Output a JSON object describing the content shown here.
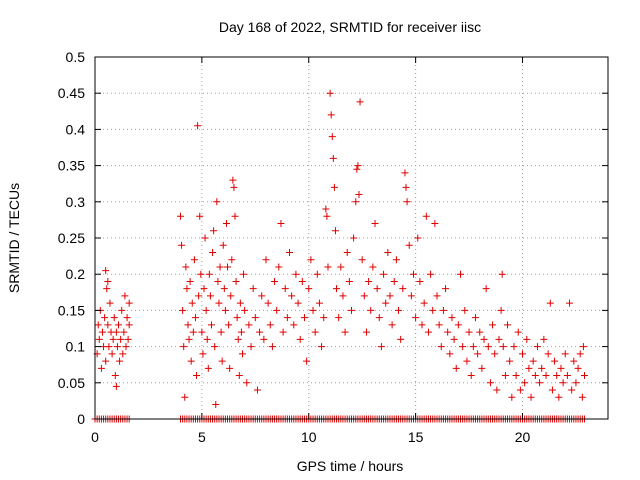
{
  "chart_data": {
    "type": "scatter",
    "title": "Day 168 of 2022, SRMTID for receiver iisc",
    "xlabel": "GPS time / hours",
    "ylabel": "SRMTID / TECUs",
    "xlim": [
      0,
      24
    ],
    "ylim": [
      0,
      0.5
    ],
    "x_ticks": [
      0,
      5,
      10,
      15,
      20
    ],
    "x_tick_labels": [
      "0",
      "5",
      "10",
      "15",
      "20"
    ],
    "y_ticks": [
      0,
      0.05,
      0.1,
      0.15,
      0.2,
      0.25,
      0.3,
      0.35,
      0.4,
      0.45,
      0.5
    ],
    "y_tick_labels": [
      "0",
      "0.05",
      "0.1",
      "0.15",
      "0.2",
      "0.25",
      "0.3",
      "0.35",
      "0.4",
      "0.45",
      "0.5"
    ],
    "grid": true,
    "marker": "+",
    "marker_color": "#e00000",
    "series": [
      {
        "name": "SRMTID",
        "points": [
          [
            0.1,
            0.09
          ],
          [
            0.15,
            0.13
          ],
          [
            0.2,
            0.11
          ],
          [
            0.25,
            0.15
          ],
          [
            0.3,
            0.07
          ],
          [
            0.35,
            0.12
          ],
          [
            0.4,
            0.1
          ],
          [
            0.45,
            0.14
          ],
          [
            0.5,
            0.08
          ],
          [
            0.5,
            0.205
          ],
          [
            0.55,
            0.18
          ],
          [
            0.6,
            0.19
          ],
          [
            0.6,
            0.13
          ],
          [
            0.65,
            0.1
          ],
          [
            0.7,
            0.16
          ],
          [
            0.75,
            0.12
          ],
          [
            0.8,
            0.09
          ],
          [
            0.85,
            0.11
          ],
          [
            0.9,
            0.14
          ],
          [
            0.95,
            0.06
          ],
          [
            1.0,
            0.12
          ],
          [
            1.0,
            0.045
          ],
          [
            1.05,
            0.1
          ],
          [
            1.1,
            0.13
          ],
          [
            1.15,
            0.08
          ],
          [
            1.2,
            0.11
          ],
          [
            1.25,
            0.15
          ],
          [
            1.3,
            0.09
          ],
          [
            1.35,
            0.12
          ],
          [
            1.4,
            0.17
          ],
          [
            1.45,
            0.1
          ],
          [
            1.5,
            0.14
          ],
          [
            1.55,
            0.11
          ],
          [
            1.6,
            0.16
          ],
          [
            1.6,
            0.13
          ],
          [
            4.0,
            0.28
          ],
          [
            4.05,
            0.24
          ],
          [
            4.1,
            0.15
          ],
          [
            4.15,
            0.1
          ],
          [
            4.2,
            0.03
          ],
          [
            4.25,
            0.21
          ],
          [
            4.3,
            0.18
          ],
          [
            4.35,
            0.13
          ],
          [
            4.4,
            0.11
          ],
          [
            4.45,
            0.19
          ],
          [
            4.5,
            0.08
          ],
          [
            4.55,
            0.16
          ],
          [
            4.6,
            0.12
          ],
          [
            4.65,
            0.22
          ],
          [
            4.7,
            0.14
          ],
          [
            4.75,
            0.06
          ],
          [
            4.8,
            0.405
          ],
          [
            4.85,
            0.17
          ],
          [
            4.9,
            0.28
          ],
          [
            4.95,
            0.2
          ],
          [
            5.0,
            0.12
          ],
          [
            5.05,
            0.09
          ],
          [
            5.1,
            0.18
          ],
          [
            5.15,
            0.25
          ],
          [
            5.2,
            0.15
          ],
          [
            5.25,
            0.11
          ],
          [
            5.3,
            0.07
          ],
          [
            5.35,
            0.2
          ],
          [
            5.4,
            0.17
          ],
          [
            5.45,
            0.13
          ],
          [
            5.5,
            0.23
          ],
          [
            5.55,
            0.26
          ],
          [
            5.6,
            0.1
          ],
          [
            5.65,
            0.02
          ],
          [
            5.7,
            0.3
          ],
          [
            5.75,
            0.19
          ],
          [
            5.8,
            0.16
          ],
          [
            5.85,
            0.21
          ],
          [
            5.9,
            0.12
          ],
          [
            5.95,
            0.08
          ],
          [
            6.0,
            0.24
          ],
          [
            6.05,
            0.18
          ],
          [
            6.1,
            0.15
          ],
          [
            6.15,
            0.27
          ],
          [
            6.2,
            0.21
          ],
          [
            6.25,
            0.13
          ],
          [
            6.3,
            0.07
          ],
          [
            6.35,
            0.17
          ],
          [
            6.4,
            0.22
          ],
          [
            6.45,
            0.33
          ],
          [
            6.5,
            0.32
          ],
          [
            6.55,
            0.28
          ],
          [
            6.6,
            0.19
          ],
          [
            6.65,
            0.14
          ],
          [
            6.7,
            0.11
          ],
          [
            6.75,
            0.06
          ],
          [
            6.8,
            0.16
          ],
          [
            6.85,
            0.12
          ],
          [
            6.9,
            0.09
          ],
          [
            6.95,
            0.2
          ],
          [
            7.0,
            0.15
          ],
          [
            7.1,
            0.05
          ],
          [
            7.2,
            0.13
          ],
          [
            7.3,
            0.1
          ],
          [
            7.4,
            0.18
          ],
          [
            7.5,
            0.14
          ],
          [
            7.6,
            0.04
          ],
          [
            7.7,
            0.12
          ],
          [
            7.8,
            0.17
          ],
          [
            7.9,
            0.11
          ],
          [
            8.0,
            0.22
          ],
          [
            8.1,
            0.16
          ],
          [
            8.2,
            0.13
          ],
          [
            8.3,
            0.1
          ],
          [
            8.4,
            0.19
          ],
          [
            8.5,
            0.15
          ],
          [
            8.6,
            0.21
          ],
          [
            8.7,
            0.27
          ],
          [
            8.8,
            0.12
          ],
          [
            8.9,
            0.18
          ],
          [
            9.0,
            0.14
          ],
          [
            9.1,
            0.23
          ],
          [
            9.2,
            0.17
          ],
          [
            9.3,
            0.13
          ],
          [
            9.4,
            0.2
          ],
          [
            9.5,
            0.16
          ],
          [
            9.6,
            0.11
          ],
          [
            9.7,
            0.19
          ],
          [
            9.8,
            0.14
          ],
          [
            9.9,
            0.08
          ],
          [
            10.0,
            0.18
          ],
          [
            10.1,
            0.22
          ],
          [
            10.2,
            0.15
          ],
          [
            10.3,
            0.12
          ],
          [
            10.4,
            0.2
          ],
          [
            10.5,
            0.16
          ],
          [
            10.6,
            0.1
          ],
          [
            10.7,
            0.14
          ],
          [
            10.8,
            0.29
          ],
          [
            10.85,
            0.28
          ],
          [
            10.9,
            0.21
          ],
          [
            11.0,
            0.45
          ],
          [
            11.05,
            0.42
          ],
          [
            11.1,
            0.39
          ],
          [
            11.15,
            0.36
          ],
          [
            11.2,
            0.32
          ],
          [
            11.25,
            0.26
          ],
          [
            11.3,
            0.18
          ],
          [
            11.4,
            0.14
          ],
          [
            11.5,
            0.21
          ],
          [
            11.6,
            0.17
          ],
          [
            11.7,
            0.12
          ],
          [
            11.8,
            0.23
          ],
          [
            11.9,
            0.19
          ],
          [
            12.0,
            0.15
          ],
          [
            12.1,
            0.25
          ],
          [
            12.2,
            0.3
          ],
          [
            12.25,
            0.345
          ],
          [
            12.3,
            0.35
          ],
          [
            12.35,
            0.31
          ],
          [
            12.4,
            0.438
          ],
          [
            12.5,
            0.22
          ],
          [
            12.6,
            0.17
          ],
          [
            12.7,
            0.12
          ],
          [
            12.8,
            0.19
          ],
          [
            12.9,
            0.15
          ],
          [
            13.0,
            0.21
          ],
          [
            13.1,
            0.27
          ],
          [
            13.2,
            0.18
          ],
          [
            13.3,
            0.14
          ],
          [
            13.4,
            0.1
          ],
          [
            13.5,
            0.2
          ],
          [
            13.6,
            0.16
          ],
          [
            13.7,
            0.23
          ],
          [
            13.8,
            0.17
          ],
          [
            13.9,
            0.13
          ],
          [
            14.0,
            0.19
          ],
          [
            14.1,
            0.22
          ],
          [
            14.2,
            0.15
          ],
          [
            14.3,
            0.11
          ],
          [
            14.4,
            0.18
          ],
          [
            14.5,
            0.34
          ],
          [
            14.55,
            0.32
          ],
          [
            14.6,
            0.3
          ],
          [
            14.7,
            0.24
          ],
          [
            14.8,
            0.17
          ],
          [
            14.9,
            0.2
          ],
          [
            15.0,
            0.14
          ],
          [
            15.1,
            0.25
          ],
          [
            15.2,
            0.19
          ],
          [
            15.3,
            0.13
          ],
          [
            15.4,
            0.16
          ],
          [
            15.5,
            0.28
          ],
          [
            15.6,
            0.12
          ],
          [
            15.7,
            0.2
          ],
          [
            15.8,
            0.15
          ],
          [
            15.9,
            0.27
          ],
          [
            16.0,
            0.17
          ],
          [
            16.1,
            0.13
          ],
          [
            16.2,
            0.1
          ],
          [
            16.3,
            0.15
          ],
          [
            16.4,
            0.18
          ],
          [
            16.5,
            0.12
          ],
          [
            16.6,
            0.09
          ],
          [
            16.7,
            0.14
          ],
          [
            16.8,
            0.11
          ],
          [
            16.9,
            0.07
          ],
          [
            17.0,
            0.13
          ],
          [
            17.1,
            0.2
          ],
          [
            17.2,
            0.1
          ],
          [
            17.3,
            0.15
          ],
          [
            17.4,
            0.08
          ],
          [
            17.5,
            0.12
          ],
          [
            17.6,
            0.06
          ],
          [
            17.7,
            0.1
          ],
          [
            17.8,
            0.14
          ],
          [
            17.9,
            0.09
          ],
          [
            18.0,
            0.12
          ],
          [
            18.1,
            0.07
          ],
          [
            18.2,
            0.11
          ],
          [
            18.3,
            0.18
          ],
          [
            18.4,
            0.1
          ],
          [
            18.5,
            0.05
          ],
          [
            18.6,
            0.13
          ],
          [
            18.7,
            0.09
          ],
          [
            18.8,
            0.04
          ],
          [
            18.9,
            0.11
          ],
          [
            19.0,
            0.15
          ],
          [
            19.05,
            0.2
          ],
          [
            19.1,
            0.1
          ],
          [
            19.2,
            0.06
          ],
          [
            19.3,
            0.13
          ],
          [
            19.4,
            0.08
          ],
          [
            19.5,
            0.03
          ],
          [
            19.6,
            0.1
          ],
          [
            19.7,
            0.06
          ],
          [
            19.8,
            0.12
          ],
          [
            19.9,
            0.04
          ],
          [
            20.0,
            0.09
          ],
          [
            20.1,
            0.05
          ],
          [
            20.2,
            0.11
          ],
          [
            20.3,
            0.07
          ],
          [
            20.4,
            0.03
          ],
          [
            20.5,
            0.08
          ],
          [
            20.6,
            0.06
          ],
          [
            20.7,
            0.1
          ],
          [
            20.8,
            0.05
          ],
          [
            20.9,
            0.07
          ],
          [
            21.0,
            0.11
          ],
          [
            21.1,
            0.06
          ],
          [
            21.2,
            0.09
          ],
          [
            21.3,
            0.16
          ],
          [
            21.4,
            0.04
          ],
          [
            21.5,
            0.08
          ],
          [
            21.6,
            0.06
          ],
          [
            21.7,
            0.03
          ],
          [
            21.8,
            0.07
          ],
          [
            21.9,
            0.05
          ],
          [
            22.0,
            0.09
          ],
          [
            22.1,
            0.06
          ],
          [
            22.2,
            0.16
          ],
          [
            22.3,
            0.04
          ],
          [
            22.4,
            0.08
          ],
          [
            22.5,
            0.05
          ],
          [
            22.6,
            0.07
          ],
          [
            22.7,
            0.09
          ],
          [
            22.8,
            0.03
          ],
          [
            22.85,
            0.1
          ],
          [
            22.9,
            0.06
          ]
        ]
      }
    ],
    "zero_line_intervals": [
      [
        0,
        1.6
      ],
      [
        4.0,
        22.9
      ]
    ]
  }
}
